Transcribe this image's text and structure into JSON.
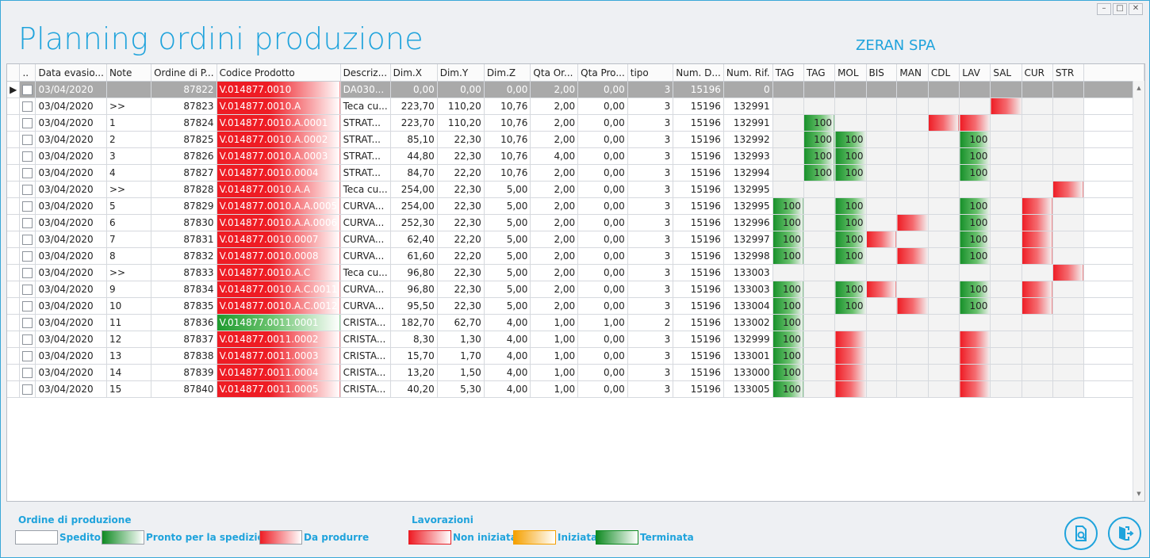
{
  "window": {
    "controls": [
      "–",
      "□",
      "✕"
    ]
  },
  "header": {
    "title": "Planning ordini produzione",
    "company": "ZERAN SPA"
  },
  "grid": {
    "columns": [
      "..",
      "Data evasio...",
      "Note",
      "Ordine di P...",
      "Codice Prodotto",
      "Descriz...",
      "Dim.X",
      "Dim.Y",
      "Dim.Z",
      "Qta Or...",
      "Qta Pro...",
      "tipo",
      "Num. D...",
      "Num. Rif.",
      "TAG",
      "TAG",
      "MOL",
      "BIS",
      "MAN",
      "CDL",
      "LAV",
      "SAL",
      "CUR",
      "STR"
    ],
    "rows": [
      {
        "date": "03/04/2020",
        "note": "",
        "ord": "87822",
        "code": "V.014877.0010",
        "desc": "DA030...",
        "dx": "0,00",
        "dy": "0,00",
        "dz": "0,00",
        "qo": "2,00",
        "qp": "0,00",
        "tipo": "3",
        "nd": "15196",
        "nr": "0",
        "code_state": "red",
        "ops": [
          "e",
          "e",
          "e",
          "e",
          "e",
          "e",
          "e",
          "e",
          "e",
          "e"
        ]
      },
      {
        "date": "03/04/2020",
        "note": ">>",
        "ord": "87823",
        "code": "V.014877.0010.A",
        "desc": "Teca cu...",
        "dx": "223,70",
        "dy": "110,20",
        "dz": "10,76",
        "qo": "2,00",
        "qp": "0,00",
        "tipo": "3",
        "nd": "15196",
        "nr": "132991",
        "code_state": "red",
        "ops": [
          "e",
          "e",
          "e",
          "e",
          "e",
          "e",
          "e",
          "r",
          "e",
          "e"
        ]
      },
      {
        "date": "03/04/2020",
        "note": "1",
        "ord": "87824",
        "code": "V.014877.0010.A.0001",
        "desc": "STRAT...",
        "dx": "223,70",
        "dy": "110,20",
        "dz": "10,76",
        "qo": "2,00",
        "qp": "0,00",
        "tipo": "3",
        "nd": "15196",
        "nr": "132991",
        "code_state": "red",
        "ops": [
          "e",
          "g",
          "e",
          "e",
          "e",
          "r",
          "r",
          "e",
          "e",
          "e"
        ]
      },
      {
        "date": "03/04/2020",
        "note": "2",
        "ord": "87825",
        "code": "V.014877.0010.A.0002",
        "desc": "STRAT...",
        "dx": "85,10",
        "dy": "22,30",
        "dz": "10,76",
        "qo": "2,00",
        "qp": "0,00",
        "tipo": "3",
        "nd": "15196",
        "nr": "132992",
        "code_state": "red",
        "ops": [
          "e",
          "g",
          "g",
          "e",
          "e",
          "e",
          "g",
          "e",
          "e",
          "e"
        ]
      },
      {
        "date": "03/04/2020",
        "note": "3",
        "ord": "87826",
        "code": "V.014877.0010.A.0003",
        "desc": "STRAT...",
        "dx": "44,80",
        "dy": "22,30",
        "dz": "10,76",
        "qo": "4,00",
        "qp": "0,00",
        "tipo": "3",
        "nd": "15196",
        "nr": "132993",
        "code_state": "red",
        "ops": [
          "e",
          "g",
          "g",
          "e",
          "e",
          "e",
          "g",
          "e",
          "e",
          "e"
        ]
      },
      {
        "date": "03/04/2020",
        "note": "4",
        "ord": "87827",
        "code": "V.014877.0010.0004",
        "desc": "STRAT...",
        "dx": "84,70",
        "dy": "22,20",
        "dz": "10,76",
        "qo": "2,00",
        "qp": "0,00",
        "tipo": "3",
        "nd": "15196",
        "nr": "132994",
        "code_state": "red",
        "ops": [
          "e",
          "g",
          "g",
          "e",
          "e",
          "e",
          "g",
          "e",
          "e",
          "e"
        ]
      },
      {
        "date": "03/04/2020",
        "note": ">>",
        "ord": "87828",
        "code": "V.014877.0010.A.A",
        "desc": "Teca cu...",
        "dx": "254,00",
        "dy": "22,30",
        "dz": "5,00",
        "qo": "2,00",
        "qp": "0,00",
        "tipo": "3",
        "nd": "15196",
        "nr": "132995",
        "code_state": "red",
        "ops": [
          "e",
          "e",
          "e",
          "e",
          "e",
          "e",
          "e",
          "e",
          "e",
          "r"
        ]
      },
      {
        "date": "03/04/2020",
        "note": "5",
        "ord": "87829",
        "code": "V.014877.0010.A.A.0005",
        "desc": "CURVA...",
        "dx": "254,00",
        "dy": "22,30",
        "dz": "5,00",
        "qo": "2,00",
        "qp": "0,00",
        "tipo": "3",
        "nd": "15196",
        "nr": "132995",
        "code_state": "red",
        "ops": [
          "g",
          "e",
          "g",
          "e",
          "e",
          "e",
          "g",
          "e",
          "r",
          "e"
        ]
      },
      {
        "date": "03/04/2020",
        "note": "6",
        "ord": "87830",
        "code": "V.014877.0010.A.A.0006",
        "desc": "CURVA...",
        "dx": "252,30",
        "dy": "22,30",
        "dz": "5,00",
        "qo": "2,00",
        "qp": "0,00",
        "tipo": "3",
        "nd": "15196",
        "nr": "132996",
        "code_state": "red",
        "ops": [
          "g",
          "e",
          "g",
          "e",
          "r",
          "e",
          "g",
          "e",
          "r",
          "e"
        ]
      },
      {
        "date": "03/04/2020",
        "note": "7",
        "ord": "87831",
        "code": "V.014877.0010.0007",
        "desc": "CURVA...",
        "dx": "62,40",
        "dy": "22,20",
        "dz": "5,00",
        "qo": "2,00",
        "qp": "0,00",
        "tipo": "3",
        "nd": "15196",
        "nr": "132997",
        "code_state": "red",
        "ops": [
          "g",
          "e",
          "g",
          "r",
          "e",
          "e",
          "g",
          "e",
          "r",
          "e"
        ]
      },
      {
        "date": "03/04/2020",
        "note": "8",
        "ord": "87832",
        "code": "V.014877.0010.0008",
        "desc": "CURVA...",
        "dx": "61,60",
        "dy": "22,20",
        "dz": "5,00",
        "qo": "2,00",
        "qp": "0,00",
        "tipo": "3",
        "nd": "15196",
        "nr": "132998",
        "code_state": "red",
        "ops": [
          "g",
          "e",
          "g",
          "e",
          "r",
          "e",
          "g",
          "e",
          "r",
          "e"
        ]
      },
      {
        "date": "03/04/2020",
        "note": ">>",
        "ord": "87833",
        "code": "V.014877.0010.A.C",
        "desc": "Teca cu...",
        "dx": "96,80",
        "dy": "22,30",
        "dz": "5,00",
        "qo": "2,00",
        "qp": "0,00",
        "tipo": "3",
        "nd": "15196",
        "nr": "133003",
        "code_state": "red",
        "ops": [
          "e",
          "e",
          "e",
          "e",
          "e",
          "e",
          "e",
          "e",
          "e",
          "r"
        ]
      },
      {
        "date": "03/04/2020",
        "note": "9",
        "ord": "87834",
        "code": "V.014877.0010.A.C.0011",
        "desc": "CURVA...",
        "dx": "96,80",
        "dy": "22,30",
        "dz": "5,00",
        "qo": "2,00",
        "qp": "0,00",
        "tipo": "3",
        "nd": "15196",
        "nr": "133003",
        "code_state": "red",
        "ops": [
          "g",
          "e",
          "g",
          "r",
          "e",
          "e",
          "g",
          "e",
          "r",
          "e"
        ]
      },
      {
        "date": "03/04/2020",
        "note": "10",
        "ord": "87835",
        "code": "V.014877.0010.A.C.0012",
        "desc": "CURVA...",
        "dx": "95,50",
        "dy": "22,30",
        "dz": "5,00",
        "qo": "2,00",
        "qp": "0,00",
        "tipo": "3",
        "nd": "15196",
        "nr": "133004",
        "code_state": "red",
        "ops": [
          "g",
          "e",
          "g",
          "e",
          "r",
          "e",
          "g",
          "e",
          "r",
          "e"
        ]
      },
      {
        "date": "03/04/2020",
        "note": "11",
        "ord": "87836",
        "code": "V.014877.0011.0001",
        "desc": "CRISTA...",
        "dx": "182,70",
        "dy": "62,70",
        "dz": "4,00",
        "qo": "1,00",
        "qp": "1,00",
        "tipo": "2",
        "nd": "15196",
        "nr": "133002",
        "code_state": "green",
        "ops": [
          "g",
          "e",
          "e",
          "e",
          "e",
          "e",
          "e",
          "e",
          "e",
          "e"
        ]
      },
      {
        "date": "03/04/2020",
        "note": "12",
        "ord": "87837",
        "code": "V.014877.0011.0002",
        "desc": "CRISTA...",
        "dx": "8,30",
        "dy": "1,30",
        "dz": "4,00",
        "qo": "1,00",
        "qp": "0,00",
        "tipo": "3",
        "nd": "15196",
        "nr": "132999",
        "code_state": "red",
        "ops": [
          "g",
          "e",
          "r",
          "e",
          "e",
          "e",
          "r",
          "e",
          "e",
          "e"
        ]
      },
      {
        "date": "03/04/2020",
        "note": "13",
        "ord": "87838",
        "code": "V.014877.0011.0003",
        "desc": "CRISTA...",
        "dx": "15,70",
        "dy": "1,70",
        "dz": "4,00",
        "qo": "1,00",
        "qp": "0,00",
        "tipo": "3",
        "nd": "15196",
        "nr": "133001",
        "code_state": "red",
        "ops": [
          "g",
          "e",
          "r",
          "e",
          "e",
          "e",
          "r",
          "e",
          "e",
          "e"
        ]
      },
      {
        "date": "03/04/2020",
        "note": "14",
        "ord": "87839",
        "code": "V.014877.0011.0004",
        "desc": "CRISTA...",
        "dx": "13,20",
        "dy": "1,50",
        "dz": "4,00",
        "qo": "1,00",
        "qp": "0,00",
        "tipo": "3",
        "nd": "15196",
        "nr": "133000",
        "code_state": "red",
        "ops": [
          "g",
          "e",
          "r",
          "e",
          "e",
          "e",
          "r",
          "e",
          "e",
          "e"
        ]
      },
      {
        "date": "03/04/2020",
        "note": "15",
        "ord": "87840",
        "code": "V.014877.0011.0005",
        "desc": "CRISTA...",
        "dx": "40,20",
        "dy": "5,30",
        "dz": "4,00",
        "qo": "1,00",
        "qp": "0,00",
        "tipo": "3",
        "nd": "15196",
        "nr": "133005",
        "code_state": "red",
        "ops": [
          "g",
          "e",
          "r",
          "e",
          "e",
          "e",
          "r",
          "e",
          "e",
          "e"
        ]
      }
    ],
    "op_value": "100",
    "selected_row": 0
  },
  "legend": {
    "orders_title": "Ordine di produzione",
    "orders": [
      {
        "label": "Spedito",
        "swatch": "white"
      },
      {
        "label": "Pronto per la spedizione",
        "swatch": "green"
      },
      {
        "label": "Da produrre",
        "swatch": "red"
      }
    ],
    "work_title": "Lavorazioni",
    "work": [
      {
        "label": "Non iniziata",
        "swatch": "nonini"
      },
      {
        "label": "Iniziata",
        "swatch": "ini"
      },
      {
        "label": "Terminata",
        "swatch": "term"
      }
    ]
  },
  "colors": {
    "accent": "#1fa3dc",
    "red": "#ee1c24",
    "green": "#1e9a2e",
    "orange": "#f5a000"
  }
}
